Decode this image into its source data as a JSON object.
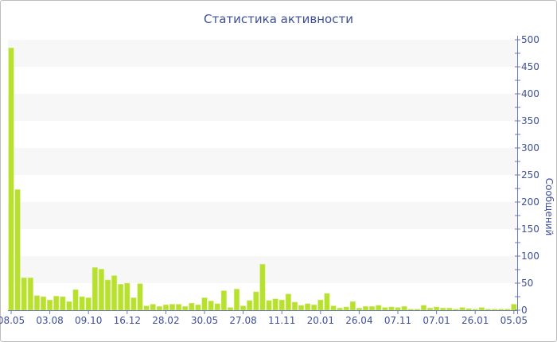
{
  "chart_data": {
    "type": "bar",
    "title": "Статистика активности",
    "ylabel": "Сообщений",
    "xlabel": "",
    "ylim": [
      0,
      500
    ],
    "y_ticks": [
      0,
      50,
      100,
      150,
      200,
      250,
      300,
      350,
      400,
      450,
      500
    ],
    "y_axis_side": "right",
    "grid": "alternating horizontal bands every 50",
    "legend": "none",
    "colors": {
      "bar": "#b8e02e",
      "bar_edge": "#d9f08a",
      "text": "#3e4f9a",
      "band": "#f7f7f7",
      "axis": "#6b7bb5"
    },
    "categories": [
      "08.05",
      "",
      "",
      "",
      "",
      "",
      "03.08",
      "",
      "",
      "",
      "",
      "",
      "09.10",
      "",
      "",
      "",
      "",
      "",
      "16.12",
      "",
      "",
      "",
      "",
      "",
      "28.02",
      "",
      "",
      "",
      "",
      "",
      "30.05",
      "",
      "",
      "",
      "",
      "",
      "27.08",
      "",
      "",
      "",
      "",
      "",
      "11.11",
      "",
      "",
      "",
      "",
      "",
      "20.01",
      "",
      "",
      "",
      "",
      "",
      "26.04",
      "",
      "",
      "",
      "",
      "",
      "07.11",
      "",
      "",
      "",
      "",
      "",
      "07.01",
      "",
      "",
      "",
      "",
      "",
      "26.01",
      "",
      "",
      "",
      "",
      "",
      "05.05"
    ],
    "values": [
      485,
      223,
      60,
      60,
      27,
      25,
      19,
      26,
      25,
      16,
      38,
      25,
      23,
      79,
      76,
      56,
      64,
      48,
      50,
      23,
      49,
      8,
      11,
      7,
      10,
      11,
      11,
      7,
      13,
      10,
      23,
      17,
      12,
      36,
      5,
      39,
      8,
      18,
      34,
      85,
      18,
      21,
      19,
      30,
      15,
      9,
      12,
      10,
      19,
      31,
      8,
      4,
      6,
      16,
      4,
      7,
      7,
      9,
      5,
      6,
      5,
      7,
      2,
      2,
      9,
      4,
      6,
      4,
      4,
      2,
      5,
      3,
      2,
      5,
      2,
      2,
      2,
      2,
      11
    ]
  }
}
